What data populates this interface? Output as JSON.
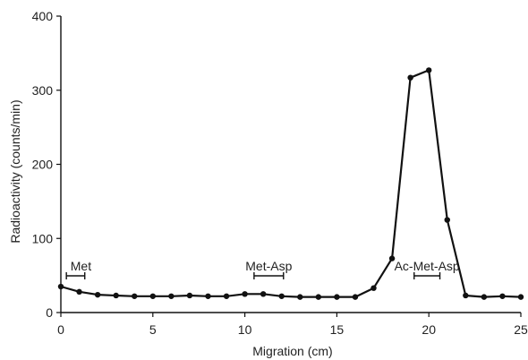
{
  "chart_data": {
    "type": "line",
    "title": "",
    "xlabel": "Migration (cm)",
    "ylabel": "Radioactivity (counts/min)",
    "xlim": [
      0,
      25
    ],
    "ylim": [
      0,
      400
    ],
    "x_ticks": [
      0,
      5,
      10,
      15,
      20,
      25
    ],
    "y_ticks": [
      0,
      100,
      200,
      300,
      400
    ],
    "grid": false,
    "series": [
      {
        "x": [
          0,
          1,
          2,
          3,
          4,
          5,
          6,
          7,
          8,
          9,
          10,
          11,
          12,
          13,
          14,
          15,
          16,
          17,
          18,
          19,
          20,
          21,
          22,
          23,
          24,
          25
        ],
        "y": [
          35,
          28,
          24,
          23,
          22,
          22,
          22,
          23,
          22,
          22,
          25,
          25,
          22,
          21,
          21,
          21,
          21,
          33,
          73,
          317,
          327,
          125,
          23,
          21,
          22,
          21
        ]
      }
    ],
    "annotations": [
      {
        "text": "Met",
        "x_start": 0.3,
        "x_end": 1.3
      },
      {
        "text": "Met-Asp",
        "x_start": 10.5,
        "x_end": 12.1
      },
      {
        "text": "Ac-Met-Asp",
        "x_start": 19.2,
        "x_end": 20.6
      }
    ]
  }
}
